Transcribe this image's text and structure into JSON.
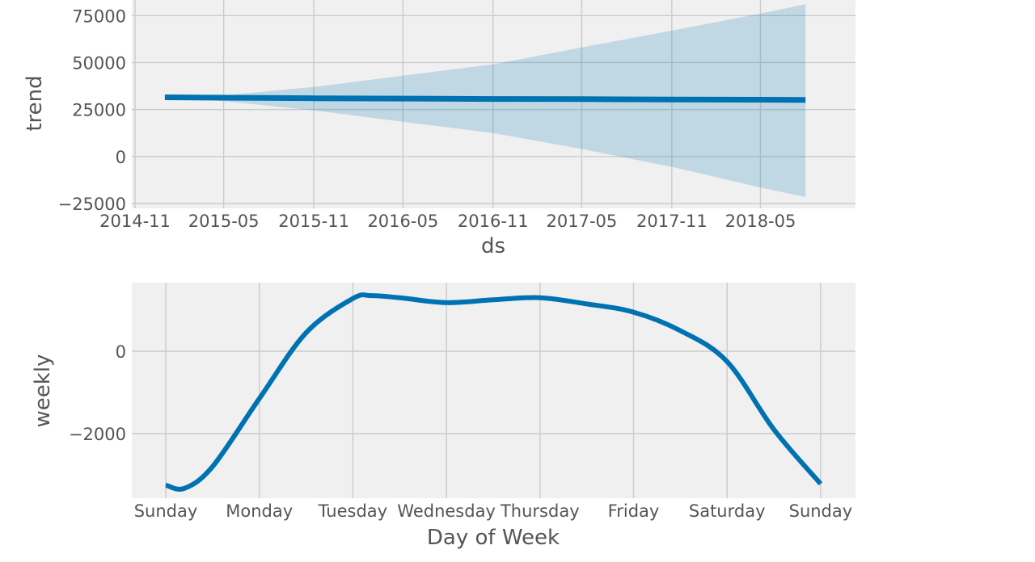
{
  "colors": {
    "line": "#0072b2",
    "band": "#0072b2",
    "plot_background": "#f0f0f0",
    "grid": "#cbcbcb",
    "text": "#555555"
  },
  "chart_data": [
    {
      "type": "line",
      "ylabel": "trend",
      "xlabel": "ds",
      "x_axis": "date",
      "xlim": [
        "2014-11-01",
        "2018-09-01"
      ],
      "ylim": [
        -25000,
        85000
      ],
      "x_ticks": [
        {
          "value": "2014-11-01",
          "label": "2014-11"
        },
        {
          "value": "2015-05-01",
          "label": "2015-05"
        },
        {
          "value": "2015-11-01",
          "label": "2015-11"
        },
        {
          "value": "2016-05-01",
          "label": "2016-05"
        },
        {
          "value": "2016-11-01",
          "label": "2016-11"
        },
        {
          "value": "2017-05-01",
          "label": "2017-05"
        },
        {
          "value": "2017-11-01",
          "label": "2017-11"
        },
        {
          "value": "2018-05-01",
          "label": "2018-05"
        }
      ],
      "y_ticks": [
        {
          "value": 75000,
          "label": "75000"
        },
        {
          "value": 50000,
          "label": "50000"
        },
        {
          "value": 25000,
          "label": "25000"
        },
        {
          "value": 0,
          "label": "0"
        },
        {
          "value": -25000,
          "label": "−25000"
        }
      ],
      "grid": true,
      "series": [
        {
          "x": [
            "2015-01-01",
            "2015-05-01",
            "2015-11-01",
            "2016-05-01",
            "2016-11-01",
            "2017-05-01",
            "2017-11-01",
            "2018-05-01",
            "2018-08-01"
          ],
          "y": [
            31500,
            31300,
            31000,
            30800,
            30600,
            30500,
            30300,
            30200,
            30100
          ],
          "lower": [
            31500,
            29500,
            24500,
            18500,
            12500,
            4000,
            -5500,
            -16500,
            -21500
          ],
          "upper": [
            31500,
            32500,
            37000,
            43000,
            49000,
            58000,
            67000,
            76000,
            81000
          ]
        }
      ]
    },
    {
      "type": "line",
      "ylabel": "weekly",
      "xlabel": "Day of Week",
      "categories": [
        "Sunday",
        "Monday",
        "Tuesday",
        "Wednesday",
        "Thursday",
        "Friday",
        "Saturday",
        "Sunday"
      ],
      "xlim": [
        -0.37,
        7.37
      ],
      "ylim": [
        -3500,
        1700
      ],
      "y_ticks": [
        {
          "value": 0,
          "label": "0"
        },
        {
          "value": -2000,
          "label": "−2000"
        }
      ],
      "grid": true,
      "series": [
        {
          "x": [
            0,
            0.2,
            0.5,
            1,
            1.5,
            2,
            2.2,
            2.5,
            3,
            3.5,
            4,
            4.5,
            5,
            5.5,
            6,
            6.5,
            7
          ],
          "y": [
            -3250,
            -3330,
            -2800,
            -1150,
            450,
            1280,
            1350,
            1300,
            1180,
            1250,
            1300,
            1150,
            950,
            500,
            -250,
            -1900,
            -3220
          ]
        }
      ]
    }
  ]
}
